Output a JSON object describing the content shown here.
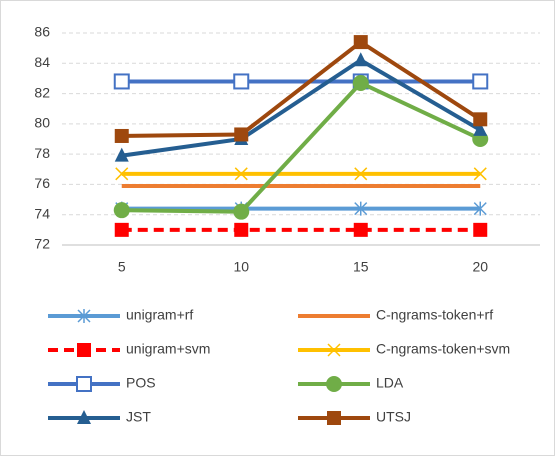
{
  "chart_data": {
    "type": "line",
    "categories": [
      "5",
      "10",
      "15",
      "20"
    ],
    "ylim": [
      72,
      86
    ],
    "yticks": [
      72,
      74,
      76,
      78,
      80,
      82,
      84,
      86
    ],
    "grid": true,
    "series": [
      {
        "name": "unigram+rf",
        "color": "#5b9bd5",
        "marker": "asterisk",
        "values": [
          74.4,
          74.4,
          74.4,
          74.4
        ]
      },
      {
        "name": "C-ngrams-token+rf",
        "color": "#ed7d31",
        "marker": "none",
        "values": [
          75.9,
          75.9,
          75.9,
          75.9
        ]
      },
      {
        "name": "unigram+svm",
        "color": "#ff0000",
        "marker": "square",
        "dashed": true,
        "values": [
          73,
          73,
          73,
          73
        ]
      },
      {
        "name": "C-ngrams-token+svm",
        "color": "#ffc000",
        "marker": "x",
        "values": [
          76.7,
          76.7,
          76.7,
          76.7
        ]
      },
      {
        "name": "POS",
        "color": "#4472c4",
        "marker": "open-square",
        "values": [
          82.8,
          82.8,
          82.8,
          82.8
        ]
      },
      {
        "name": "LDA",
        "color": "#70ad47",
        "marker": "circle",
        "values": [
          74.3,
          74.2,
          82.7,
          79.0
        ]
      },
      {
        "name": "JST",
        "color": "#255e91",
        "marker": "triangle",
        "values": [
          77.9,
          79.0,
          84.2,
          79.6
        ]
      },
      {
        "name": "UTSJ",
        "color": "#9e480e",
        "marker": "square",
        "values": [
          79.2,
          79.3,
          85.4,
          80.3
        ]
      }
    ]
  }
}
